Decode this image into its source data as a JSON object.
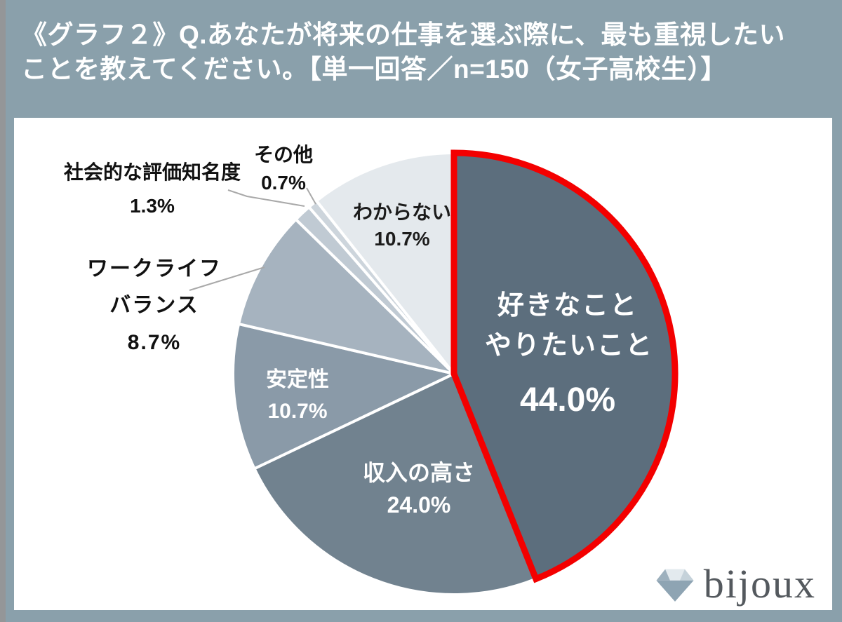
{
  "header": {
    "title_lines": [
      "《グラフ２》Q.あなたが将来の仕事を選ぶ際に、最も重視したい",
      "ことを教えてください。【単一回答／n=150（女子高校生）】"
    ]
  },
  "chart_data": {
    "type": "pie",
    "title": "あなたが将来の仕事を選ぶ際に、最も重視したいことを教えてください。",
    "sample_note": "単一回答／n=150（女子高校生）",
    "start_angle_deg": 0,
    "direction": "clockwise",
    "highlight_color": "#f30000",
    "slices": [
      {
        "label": "好きなことやりたいこと",
        "label_lines": [
          "好きなこと",
          "やりたいこと"
        ],
        "pct_label": "44.0%",
        "value": 44.0,
        "color": "#5c6e7d",
        "text_color": "#ffffff",
        "highlight": true
      },
      {
        "label": "収入の高さ",
        "label_lines": [
          "収入の高さ"
        ],
        "pct_label": "24.0%",
        "value": 24.0,
        "color": "#71828f",
        "text_color": "#ffffff",
        "highlight": false
      },
      {
        "label": "安定性",
        "label_lines": [
          "安定性"
        ],
        "pct_label": "10.7%",
        "value": 10.7,
        "color": "#8a9aa8",
        "text_color": "#ffffff",
        "highlight": false
      },
      {
        "label": "ワークライフバランス",
        "label_lines": [
          "ワークライフ",
          "バランス"
        ],
        "pct_label": "8.7%",
        "value": 8.7,
        "color": "#a6b3bf",
        "text_color": "#111111",
        "label_outside": true,
        "highlight": false
      },
      {
        "label": "社会的な評価知名度",
        "label_lines": [
          "社会的な評価知名度"
        ],
        "pct_label": "1.3%",
        "value": 1.3,
        "color": "#c0cad3",
        "text_color": "#111111",
        "label_outside": true,
        "highlight": false
      },
      {
        "label": "その他",
        "label_lines": [
          "その他"
        ],
        "pct_label": "0.7%",
        "value": 0.7,
        "color": "#cdd5dc",
        "text_color": "#111111",
        "label_outside": true,
        "highlight": false
      },
      {
        "label": "わからない",
        "label_lines": [
          "わからない"
        ],
        "pct_label": "10.7%",
        "value": 10.7,
        "color": "#e4e9ed",
        "text_color": "#1c1c1c",
        "highlight": false
      }
    ]
  },
  "logo": {
    "text": "bijoux",
    "icon": "diamond-icon"
  },
  "colors": {
    "background": "#8aa0ab",
    "left_strip": "#949698",
    "card": "#ffffff",
    "header_text": "#ffffff",
    "leader_line": "#a9a9a9",
    "slice_border": "#ffffff",
    "highlight_outline": "#f30000"
  }
}
